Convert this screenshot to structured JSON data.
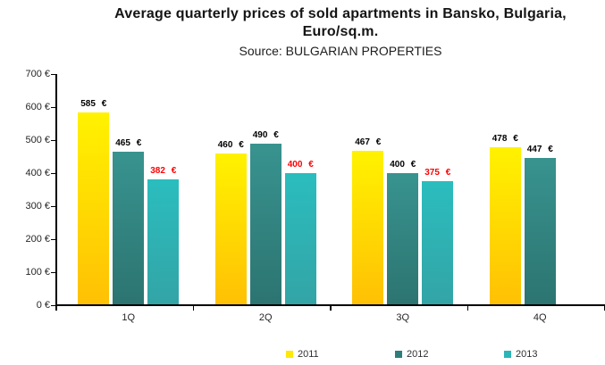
{
  "header": {
    "title_line1": "Average quarterly prices of sold apartments in Bansko, Bulgaria,",
    "title_line2": "Euro/sq.m.",
    "source": "Source: BULGARIAN PROPERTIES"
  },
  "chart_data": {
    "type": "bar",
    "title": "Average quarterly prices of sold apartments in Bansko, Bulgaria, Euro/sq.m.",
    "subtitle": "Source: BULGARIAN PROPERTIES",
    "categories": [
      "1Q",
      "2Q",
      "3Q",
      "4Q"
    ],
    "series": [
      {
        "name": "2011",
        "values": [
          585,
          460,
          467,
          478
        ],
        "bar_color_top": "#FFF200",
        "bar_color_bottom": "#FFC004",
        "legend_color": "#FFE70A",
        "label_color": "#000000"
      },
      {
        "name": "2012",
        "values": [
          465,
          490,
          400,
          447
        ],
        "bar_color_top": "#38938F",
        "bar_color_bottom": "#2C7471",
        "legend_color": "#2E7D7B",
        "label_color": "#000000"
      },
      {
        "name": "2013",
        "values": [
          382,
          400,
          375,
          null
        ],
        "bar_color_top": "#2BBDBE",
        "bar_color_bottom": "#33A4A6",
        "legend_color": "#2BB5B8",
        "label_color": "#FF0000"
      }
    ],
    "ylim": [
      0,
      700
    ],
    "ytick_step": 100,
    "ytick_labels": [
      "0 €",
      "100 €",
      "200 €",
      "300 €",
      "400 €",
      "500 €",
      "600 €",
      "700 €"
    ],
    "value_label_suffix": "€",
    "axis_color": "#000000",
    "grid": false,
    "legend_position": "bottom",
    "bar_value_labels": true
  }
}
